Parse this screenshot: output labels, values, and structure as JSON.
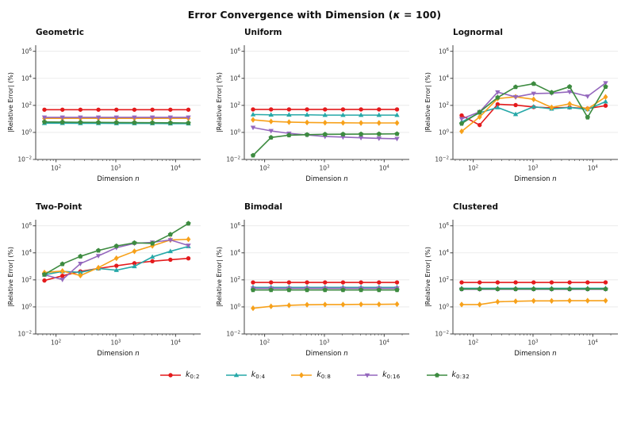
{
  "title": {
    "prefix": "Error Convergence with Dimension (",
    "kappa": "κ",
    "suffix": " = 100)"
  },
  "ui": {
    "grid_color": "#e7e7e7",
    "spine_color": "#444444",
    "tick_color": "#333333",
    "text_color": "#111111"
  },
  "axes": {
    "xlabel_prefix": "Dimension ",
    "xlabel_var": "n",
    "ylabel": "|Relative Error| (%)",
    "x_tick_exps": [
      2,
      3,
      4
    ],
    "y_tick_exps": [
      6,
      4,
      2,
      0,
      -2
    ],
    "xlim_log": [
      1.66,
      4.42
    ],
    "ylim_log": [
      -2,
      6.45
    ],
    "grid": "horizontal-major",
    "xscale": "log",
    "yscale": "log"
  },
  "series_styles": [
    {
      "name": "k_{0:2}",
      "label_base": "k",
      "label_sub": "0:2",
      "color": "#e41a1c",
      "marker": "circle"
    },
    {
      "name": "k_{0:4}",
      "label_base": "k",
      "label_sub": "0:4",
      "color": "#26a8a8",
      "marker": "triangle-up"
    },
    {
      "name": "k_{0:8}",
      "label_base": "k",
      "label_sub": "0:8",
      "color": "#f7a11a",
      "marker": "diamond"
    },
    {
      "name": "k_{0:16}",
      "label_base": "k",
      "label_sub": "0:16",
      "color": "#9467bd",
      "marker": "triangle-down"
    },
    {
      "name": "k_{0:32}",
      "label_base": "k",
      "label_sub": "0:32",
      "color": "#3d8b40",
      "marker": "pentagon"
    }
  ],
  "chart_data": [
    {
      "type": "line",
      "title": "Geometric",
      "x": [
        64,
        128,
        256,
        512,
        1024,
        2048,
        4096,
        8192,
        16384
      ],
      "series": [
        {
          "name": "k_{0:2}",
          "values": [
            48,
            48,
            48,
            48,
            48,
            48,
            48,
            48,
            48
          ]
        },
        {
          "name": "k_{0:4}",
          "values": [
            4.8,
            4.8,
            4.7,
            4.7,
            4.6,
            4.6,
            4.6,
            4.5,
            4.5
          ]
        },
        {
          "name": "k_{0:8}",
          "values": [
            11,
            11,
            11,
            11,
            11,
            11,
            11,
            11,
            11
          ]
        },
        {
          "name": "k_{0:16}",
          "values": [
            13,
            13,
            13,
            13,
            13,
            13,
            13,
            13,
            13
          ]
        },
        {
          "name": "k_{0:32}",
          "values": [
            6,
            5.8,
            5.6,
            5.5,
            5.4,
            5.3,
            5.2,
            5.1,
            5
          ]
        }
      ]
    },
    {
      "type": "line",
      "title": "Uniform",
      "x": [
        64,
        128,
        256,
        512,
        1024,
        2048,
        4096,
        8192,
        16384
      ],
      "series": [
        {
          "name": "k_{0:2}",
          "values": [
            50,
            50,
            50,
            50,
            50,
            50,
            50,
            50,
            50
          ]
        },
        {
          "name": "k_{0:4}",
          "values": [
            21,
            20,
            20,
            20,
            19,
            19,
            19,
            19,
            19
          ]
        },
        {
          "name": "k_{0:8}",
          "values": [
            8.5,
            6.5,
            5.8,
            5.4,
            5.2,
            5.1,
            5,
            5,
            5
          ]
        },
        {
          "name": "k_{0:16}",
          "values": [
            2.3,
            1.3,
            0.85,
            0.65,
            0.5,
            0.45,
            0.4,
            0.36,
            0.34
          ]
        },
        {
          "name": "k_{0:32}",
          "values": [
            0.02,
            0.42,
            0.62,
            0.68,
            0.72,
            0.74,
            0.75,
            0.76,
            0.78
          ]
        }
      ]
    },
    {
      "type": "line",
      "title": "Lognormal",
      "x": [
        64,
        128,
        256,
        512,
        1024,
        2048,
        4096,
        8192,
        16384
      ],
      "series": [
        {
          "name": "k_{0:2}",
          "values": [
            18,
            3.5,
            120,
            105,
            75,
            65,
            70,
            58,
            95
          ]
        },
        {
          "name": "k_{0:4}",
          "values": [
            6,
            28,
            70,
            22,
            80,
            55,
            70,
            50,
            190
          ]
        },
        {
          "name": "k_{0:8}",
          "values": [
            1.2,
            14,
            320,
            430,
            280,
            70,
            130,
            55,
            420
          ]
        },
        {
          "name": "k_{0:16}",
          "values": [
            10,
            33,
            950,
            420,
            750,
            800,
            1000,
            470,
            4500
          ]
        },
        {
          "name": "k_{0:32}",
          "values": [
            4.5,
            32,
            380,
            2300,
            4000,
            900,
            2400,
            13,
            2400
          ]
        }
      ]
    },
    {
      "type": "line",
      "title": "Two-Point",
      "x": [
        64,
        128,
        256,
        512,
        1024,
        2048,
        4096,
        8192,
        16384
      ],
      "series": [
        {
          "name": "k_{0:2}",
          "values": [
            90,
            200,
            420,
            700,
            1100,
            1700,
            2400,
            3100,
            3900
          ]
        },
        {
          "name": "k_{0:4}",
          "values": [
            240,
            420,
            360,
            700,
            520,
            1000,
            5000,
            13000,
            30000
          ]
        },
        {
          "name": "k_{0:8}",
          "values": [
            350,
            450,
            210,
            800,
            4000,
            13000,
            33000,
            90000,
            100000
          ]
        },
        {
          "name": "k_{0:16}",
          "values": [
            240,
            105,
            1600,
            6000,
            24000,
            50000,
            60000,
            90000,
            35000
          ]
        },
        {
          "name": "k_{0:32}",
          "values": [
            250,
            1500,
            5500,
            15000,
            32000,
            55000,
            50000,
            230000,
            1500000
          ]
        }
      ]
    },
    {
      "type": "line",
      "title": "Bimodal",
      "x": [
        64,
        128,
        256,
        512,
        1024,
        2048,
        4096,
        8192,
        16384
      ],
      "series": [
        {
          "name": "k_{0:2}",
          "values": [
            65,
            65,
            65,
            65,
            65,
            65,
            65,
            65,
            65
          ]
        },
        {
          "name": "k_{0:4}",
          "values": [
            28,
            28,
            28,
            28,
            28,
            28,
            28,
            28,
            28
          ]
        },
        {
          "name": "k_{0:8}",
          "values": [
            0.8,
            1.1,
            1.3,
            1.45,
            1.5,
            1.5,
            1.55,
            1.55,
            1.6
          ]
        },
        {
          "name": "k_{0:16}",
          "values": [
            24,
            24,
            24,
            24,
            24,
            24,
            24,
            24,
            24
          ]
        },
        {
          "name": "k_{0:32}",
          "values": [
            18,
            18,
            18,
            18,
            18,
            18,
            18,
            18,
            18
          ]
        }
      ]
    },
    {
      "type": "line",
      "title": "Clustered",
      "x": [
        64,
        128,
        256,
        512,
        1024,
        2048,
        4096,
        8192,
        16384
      ],
      "series": [
        {
          "name": "k_{0:2}",
          "values": [
            65,
            65,
            65,
            65,
            65,
            65,
            65,
            65,
            65
          ]
        },
        {
          "name": "k_{0:4}",
          "values": [
            24,
            24,
            24,
            24,
            24,
            24,
            24,
            24,
            24
          ]
        },
        {
          "name": "k_{0:8}",
          "values": [
            1.5,
            1.5,
            2.4,
            2.6,
            2.8,
            2.8,
            2.9,
            2.9,
            2.9
          ]
        },
        {
          "name": "k_{0:16}",
          "values": [
            20,
            20,
            20,
            20,
            20,
            20,
            20,
            20,
            20
          ]
        },
        {
          "name": "k_{0:32}",
          "values": [
            21,
            21,
            21,
            21,
            21,
            21,
            21,
            21,
            21
          ]
        }
      ]
    }
  ]
}
